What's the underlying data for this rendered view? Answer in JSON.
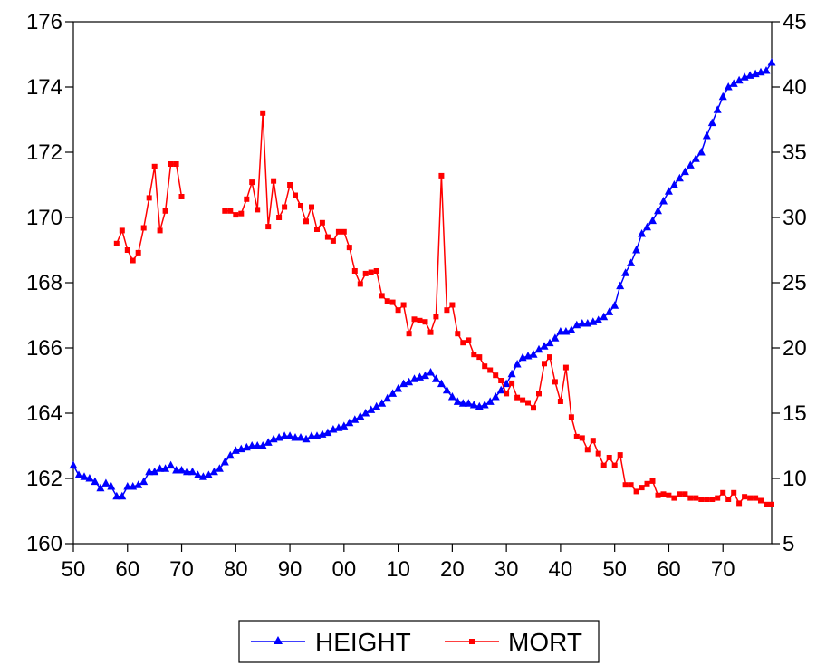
{
  "chart_data": {
    "type": "line",
    "title": "",
    "xlabel": "",
    "ylabel_left": "",
    "ylabel_right": "",
    "x_ticks": [
      "50",
      "60",
      "70",
      "80",
      "90",
      "00",
      "10",
      "20",
      "30",
      "40",
      "50",
      "60",
      "70"
    ],
    "x_tick_years": [
      1650,
      1660,
      1670,
      1680,
      1690,
      1700,
      1710,
      1720,
      1730,
      1740,
      1750,
      1760,
      1770
    ],
    "xlim": [
      1650,
      1779
    ],
    "y_left": {
      "ticks": [
        "160",
        "162",
        "164",
        "166",
        "168",
        "170",
        "172",
        "174",
        "176"
      ],
      "lim": [
        160,
        176
      ]
    },
    "y_right": {
      "ticks": [
        "5",
        "10",
        "15",
        "20",
        "25",
        "30",
        "35",
        "40",
        "45"
      ],
      "lim": [
        5,
        45
      ]
    },
    "grid": false,
    "legend_position": "bottom",
    "series": [
      {
        "name": "HEIGHT",
        "axis": "left",
        "color": "#0000ff",
        "marker": "triangle",
        "x": [
          1650,
          1651,
          1652,
          1653,
          1654,
          1655,
          1656,
          1657,
          1658,
          1659,
          1660,
          1661,
          1662,
          1663,
          1664,
          1665,
          1666,
          1667,
          1668,
          1669,
          1670,
          1671,
          1672,
          1673,
          1674,
          1675,
          1676,
          1677,
          1678,
          1679,
          1680,
          1681,
          1682,
          1683,
          1684,
          1685,
          1686,
          1687,
          1688,
          1689,
          1690,
          1691,
          1692,
          1693,
          1694,
          1695,
          1696,
          1697,
          1698,
          1699,
          1700,
          1701,
          1702,
          1703,
          1704,
          1705,
          1706,
          1707,
          1708,
          1709,
          1710,
          1711,
          1712,
          1713,
          1714,
          1715,
          1716,
          1717,
          1718,
          1719,
          1720,
          1721,
          1722,
          1723,
          1724,
          1725,
          1726,
          1727,
          1728,
          1729,
          1730,
          1731,
          1732,
          1733,
          1734,
          1735,
          1736,
          1737,
          1738,
          1739,
          1740,
          1741,
          1742,
          1743,
          1744,
          1745,
          1746,
          1747,
          1748,
          1749,
          1750,
          1751,
          1752,
          1753,
          1754,
          1755,
          1756,
          1757,
          1758,
          1759,
          1760,
          1761,
          1762,
          1763,
          1764,
          1765,
          1766,
          1767,
          1768,
          1769,
          1770,
          1771,
          1772,
          1773,
          1774,
          1775,
          1776,
          1777,
          1778,
          1779
        ],
        "values": [
          162.4,
          162.1,
          162.05,
          162.0,
          161.9,
          161.7,
          161.85,
          161.75,
          161.45,
          161.45,
          161.75,
          161.75,
          161.8,
          161.9,
          162.2,
          162.2,
          162.3,
          162.3,
          162.4,
          162.25,
          162.25,
          162.2,
          162.2,
          162.1,
          162.05,
          162.1,
          162.2,
          162.3,
          162.5,
          162.7,
          162.85,
          162.9,
          162.95,
          163.0,
          163.0,
          163.0,
          163.1,
          163.2,
          163.25,
          163.3,
          163.3,
          163.25,
          163.25,
          163.2,
          163.3,
          163.3,
          163.35,
          163.4,
          163.5,
          163.55,
          163.6,
          163.7,
          163.8,
          163.9,
          164.0,
          164.1,
          164.2,
          164.3,
          164.45,
          164.6,
          164.75,
          164.9,
          164.95,
          165.05,
          165.1,
          165.15,
          165.25,
          165.05,
          164.9,
          164.7,
          164.5,
          164.35,
          164.3,
          164.3,
          164.25,
          164.2,
          164.25,
          164.35,
          164.5,
          164.7,
          164.9,
          165.2,
          165.5,
          165.7,
          165.75,
          165.8,
          165.95,
          166.05,
          166.15,
          166.3,
          166.5,
          166.5,
          166.55,
          166.7,
          166.75,
          166.75,
          166.8,
          166.85,
          166.95,
          167.1,
          167.3,
          167.9,
          168.3,
          168.6,
          169.0,
          169.5,
          169.7,
          169.9,
          170.2,
          170.5,
          170.8,
          171.0,
          171.2,
          171.4,
          171.6,
          171.8,
          172.0,
          172.5,
          172.9,
          173.3,
          173.7,
          174.0,
          174.1,
          174.2,
          174.3,
          174.35,
          174.4,
          174.45,
          174.5,
          174.75
        ]
      },
      {
        "name": "MORT",
        "axis": "right",
        "color": "#ff0000",
        "marker": "square",
        "x": [
          1658,
          1659,
          1660,
          1661,
          1662,
          1663,
          1664,
          1665,
          1666,
          1667,
          1668,
          1669,
          1670,
          null,
          1678,
          1679,
          1680,
          1681,
          1682,
          1683,
          1684,
          1685,
          1686,
          1687,
          1688,
          1689,
          1690,
          1691,
          1692,
          1693,
          1694,
          1695,
          1696,
          1697,
          1698,
          1699,
          1700,
          1701,
          1702,
          1703,
          1704,
          1705,
          1706,
          1707,
          1708,
          1709,
          1710,
          1711,
          1712,
          1713,
          1714,
          1715,
          1716,
          1717,
          1718,
          1719,
          1720,
          1721,
          1722,
          1723,
          1724,
          1725,
          1726,
          1727,
          1728,
          1729,
          1730,
          1731,
          1732,
          1733,
          1734,
          1735,
          1736,
          1737,
          1738,
          1739,
          1740,
          1741,
          1742,
          1743,
          1744,
          1745,
          1746,
          1747,
          1748,
          1749,
          1750,
          1751,
          1752,
          1753,
          1754,
          1755,
          1756,
          1757,
          1758,
          1759,
          1760,
          1761,
          1762,
          1763,
          1764,
          1765,
          1766,
          1767,
          1768,
          1769,
          1770,
          1771,
          1772,
          1773,
          1774,
          1775,
          1776,
          1777,
          1778,
          1779
        ],
        "values": [
          28,
          29,
          27.5,
          26.7,
          27.3,
          29.2,
          31.5,
          33.9,
          29,
          30.5,
          34.1,
          34.1,
          31.6,
          null,
          30.5,
          30.5,
          30.2,
          30.3,
          31.4,
          32.7,
          30.6,
          38,
          29.3,
          32.8,
          30,
          30.8,
          32.5,
          31.7,
          30.9,
          29.7,
          30.8,
          29.1,
          29.6,
          28.5,
          28.2,
          28.9,
          28.9,
          27.7,
          25.9,
          24.9,
          25.7,
          25.8,
          25.9,
          24,
          23.6,
          23.5,
          22.9,
          23.3,
          21.1,
          22.2,
          22.1,
          22,
          21.2,
          22.4,
          33.2,
          22.9,
          23.3,
          21.1,
          20.4,
          20.6,
          19.5,
          19.3,
          18.6,
          18.3,
          17.9,
          17.5,
          16.5,
          17.3,
          16.2,
          16,
          15.8,
          15.4,
          16.5,
          18.8,
          19.3,
          17.4,
          15.9,
          18.5,
          14.7,
          13.2,
          13.1,
          12.2,
          12.9,
          11.9,
          11,
          11.6,
          11,
          11.8,
          9.5,
          9.5,
          9,
          9.3,
          9.6,
          9.8,
          8.7,
          8.8,
          8.7,
          8.5,
          8.8,
          8.8,
          8.5,
          8.5,
          8.4,
          8.4,
          8.4,
          8.5,
          8.9,
          8.4,
          8.9,
          8.1,
          8.6,
          8.5,
          8.5,
          8.3,
          8,
          8
        ]
      }
    ]
  }
}
